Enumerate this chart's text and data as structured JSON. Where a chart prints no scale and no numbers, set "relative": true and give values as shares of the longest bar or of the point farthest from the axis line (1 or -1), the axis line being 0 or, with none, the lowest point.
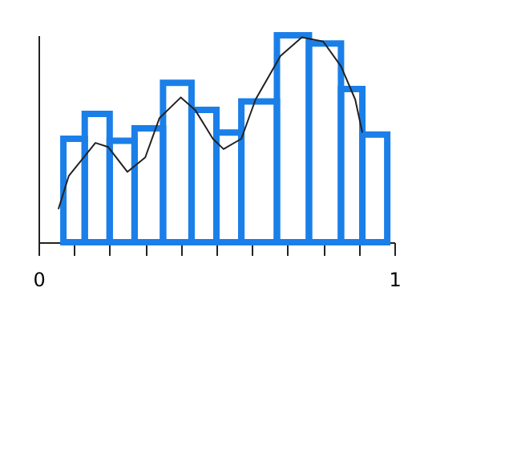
{
  "chart_data": {
    "type": "histogram",
    "relative": true,
    "bins": [
      0.07,
      0.13,
      0.2,
      0.27,
      0.35,
      0.43,
      0.5,
      0.57,
      0.67,
      0.76,
      0.85,
      0.91,
      0.98
    ],
    "values": [
      0.5,
      0.62,
      0.49,
      0.55,
      0.77,
      0.64,
      0.53,
      0.68,
      1,
      0.96,
      0.74,
      0.52
    ],
    "color": "#1a7fe8",
    "series": [
      {
        "type": "line",
        "color": "#222222",
        "x": [
          0.056,
          0.085,
          0.16,
          0.196,
          0.25,
          0.3,
          0.34,
          0.4,
          0.44,
          0.49,
          0.52,
          0.57,
          0.61,
          0.68,
          0.74,
          0.8,
          0.85,
          0.89,
          0.91
        ],
        "values": [
          0.16,
          0.32,
          0.48,
          0.46,
          0.34,
          0.41,
          0.6,
          0.7,
          0.64,
          0.5,
          0.45,
          0.5,
          0.69,
          0.9,
          0.99,
          0.97,
          0.85,
          0.69,
          0.53
        ]
      }
    ],
    "xlim": [
      0,
      1
    ],
    "xticks": [
      0,
      {
        "value": 0.1,
        "label": null
      },
      {
        "value": 0.2,
        "label": null
      },
      {
        "value": 0.3,
        "label": null
      },
      {
        "value": 0.4,
        "label": null
      },
      {
        "value": 0.5,
        "label": null
      },
      {
        "value": 0.6,
        "label": null
      },
      {
        "value": 0.7,
        "label": null
      },
      {
        "value": 0.8,
        "label": null
      },
      {
        "value": 0.9,
        "label": null
      },
      1
    ],
    "grid": false
  }
}
